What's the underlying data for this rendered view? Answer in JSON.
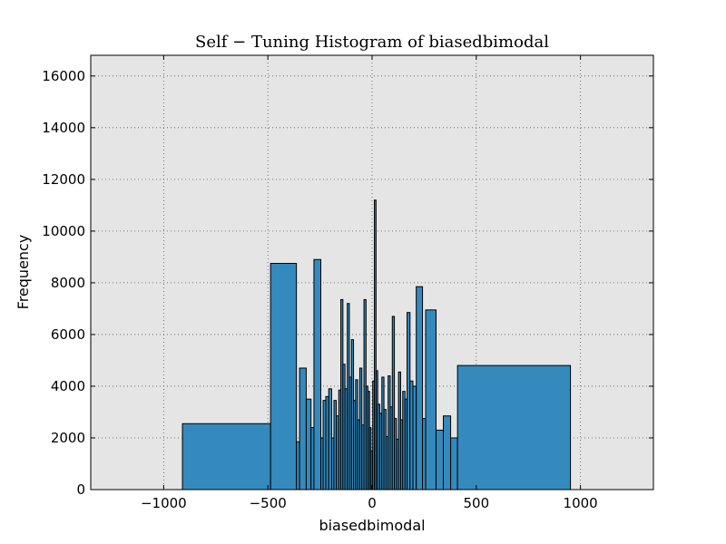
{
  "chart_data": {
    "type": "bar",
    "title": "Self − Tuning Histogram of biasedbimodal",
    "xlabel": "biasedbimodal",
    "ylabel": "Frequency",
    "xlim": [
      -1350,
      1350
    ],
    "ylim": [
      0,
      16800
    ],
    "xticks": [
      -1000,
      -500,
      0,
      500,
      1000
    ],
    "yticks": [
      0,
      2000,
      4000,
      6000,
      8000,
      10000,
      12000,
      14000,
      16000
    ],
    "grid": true,
    "bar_color": "#348abd",
    "edge_color": "#000000",
    "bg_color": "#e5e5e5",
    "bins": [
      {
        "x0": -910,
        "x1": -487,
        "value": 2550
      },
      {
        "x0": -487,
        "x1": -363,
        "value": 8750
      },
      {
        "x0": -363,
        "x1": -348,
        "value": 1850
      },
      {
        "x0": -348,
        "x1": -316,
        "value": 4700
      },
      {
        "x0": -316,
        "x1": -293,
        "value": 3500
      },
      {
        "x0": -293,
        "x1": -279,
        "value": 2400
      },
      {
        "x0": -279,
        "x1": -246,
        "value": 8900
      },
      {
        "x0": -246,
        "x1": -235,
        "value": 2000
      },
      {
        "x0": -235,
        "x1": -222,
        "value": 3450
      },
      {
        "x0": -222,
        "x1": -208,
        "value": 3600
      },
      {
        "x0": -208,
        "x1": -194,
        "value": 3900
      },
      {
        "x0": -194,
        "x1": -183,
        "value": 2000
      },
      {
        "x0": -183,
        "x1": -172,
        "value": 3450
      },
      {
        "x0": -172,
        "x1": -160,
        "value": 2850
      },
      {
        "x0": -160,
        "x1": -150,
        "value": 3850
      },
      {
        "x0": -150,
        "x1": -140,
        "value": 7350
      },
      {
        "x0": -140,
        "x1": -130,
        "value": 4850
      },
      {
        "x0": -130,
        "x1": -119,
        "value": 3900
      },
      {
        "x0": -119,
        "x1": -109,
        "value": 7200
      },
      {
        "x0": -109,
        "x1": -99,
        "value": 4350
      },
      {
        "x0": -99,
        "x1": -89,
        "value": 5800
      },
      {
        "x0": -89,
        "x1": -79,
        "value": 3450
      },
      {
        "x0": -79,
        "x1": -69,
        "value": 4250
      },
      {
        "x0": -69,
        "x1": -59,
        "value": 2700
      },
      {
        "x0": -59,
        "x1": -49,
        "value": 4700
      },
      {
        "x0": -49,
        "x1": -39,
        "value": 2500
      },
      {
        "x0": -39,
        "x1": -29,
        "value": 7350
      },
      {
        "x0": -29,
        "x1": -20,
        "value": 4000
      },
      {
        "x0": -20,
        "x1": -12,
        "value": 3800
      },
      {
        "x0": -12,
        "x1": -5,
        "value": 2400
      },
      {
        "x0": -5,
        "x1": 3,
        "value": 1500
      },
      {
        "x0": 3,
        "x1": 11,
        "value": 4200
      },
      {
        "x0": 11,
        "x1": 19,
        "value": 11200
      },
      {
        "x0": 19,
        "x1": 27,
        "value": 4600
      },
      {
        "x0": 27,
        "x1": 37,
        "value": 3300
      },
      {
        "x0": 37,
        "x1": 47,
        "value": 2950
      },
      {
        "x0": 47,
        "x1": 57,
        "value": 4350
      },
      {
        "x0": 57,
        "x1": 67,
        "value": 3100
      },
      {
        "x0": 67,
        "x1": 77,
        "value": 2050
      },
      {
        "x0": 77,
        "x1": 87,
        "value": 4400
      },
      {
        "x0": 87,
        "x1": 97,
        "value": 3200
      },
      {
        "x0": 97,
        "x1": 107,
        "value": 6700
      },
      {
        "x0": 107,
        "x1": 117,
        "value": 2750
      },
      {
        "x0": 117,
        "x1": 127,
        "value": 1950
      },
      {
        "x0": 127,
        "x1": 137,
        "value": 4550
      },
      {
        "x0": 137,
        "x1": 147,
        "value": 2700
      },
      {
        "x0": 147,
        "x1": 158,
        "value": 3800
      },
      {
        "x0": 158,
        "x1": 168,
        "value": 3500
      },
      {
        "x0": 168,
        "x1": 182,
        "value": 6850
      },
      {
        "x0": 182,
        "x1": 196,
        "value": 4200
      },
      {
        "x0": 196,
        "x1": 212,
        "value": 4000
      },
      {
        "x0": 212,
        "x1": 242,
        "value": 7850
      },
      {
        "x0": 242,
        "x1": 257,
        "value": 2750
      },
      {
        "x0": 257,
        "x1": 307,
        "value": 6950
      },
      {
        "x0": 307,
        "x1": 342,
        "value": 2300
      },
      {
        "x0": 342,
        "x1": 377,
        "value": 2850
      },
      {
        "x0": 377,
        "x1": 410,
        "value": 2000
      },
      {
        "x0": 410,
        "x1": 952,
        "value": 4800
      }
    ]
  }
}
